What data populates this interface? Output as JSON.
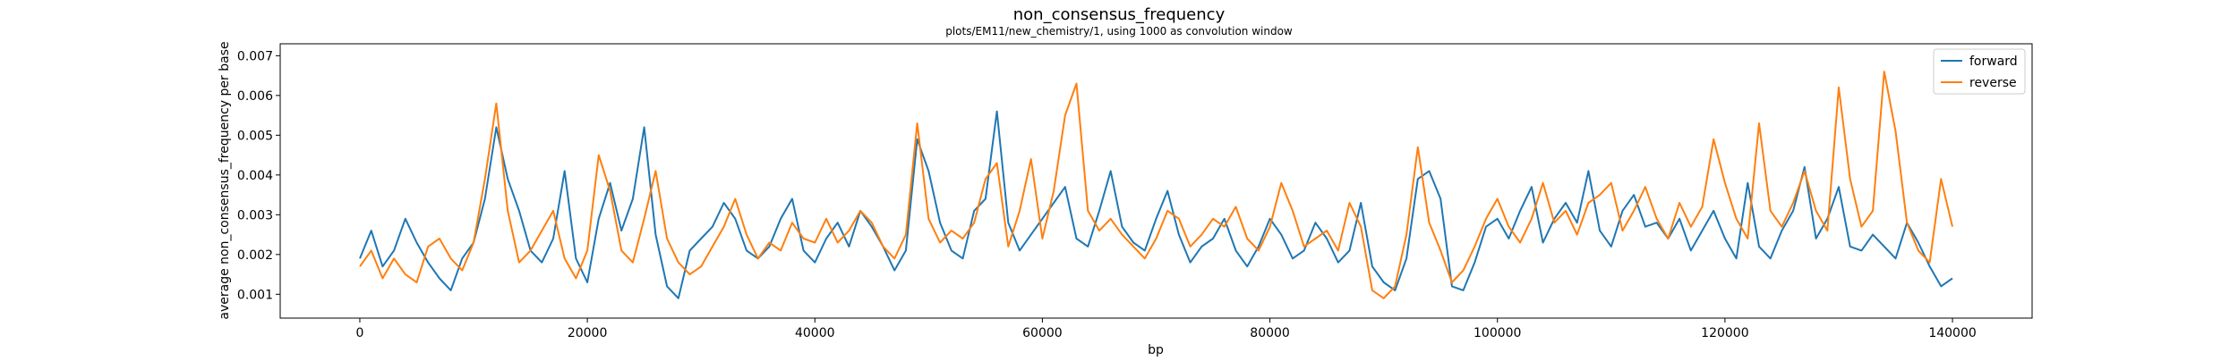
{
  "chart_data": {
    "type": "line",
    "title": "non_consensus_frequency",
    "subtitle": "plots/EM11/new_chemistry/1, using 1000 as convolution window",
    "xlabel": "bp",
    "ylabel": "average non_consensus_frequency per base",
    "xlim": [
      -7000,
      147000
    ],
    "ylim": [
      0.0004,
      0.0073
    ],
    "xticks": [
      0,
      20000,
      40000,
      60000,
      80000,
      100000,
      120000,
      140000
    ],
    "yticks": [
      0.001,
      0.002,
      0.003,
      0.004,
      0.005,
      0.006,
      0.007
    ],
    "xtick_labels": [
      "0",
      "20000",
      "40000",
      "60000",
      "80000",
      "100000",
      "120000",
      "140000"
    ],
    "ytick_labels": [
      "0.001",
      "0.002",
      "0.003",
      "0.004",
      "0.005",
      "0.006",
      "0.007"
    ],
    "legend_position": "top-right",
    "series": [
      {
        "name": "forward",
        "color": "#1f77b4",
        "x": [
          0,
          1000,
          2000,
          3000,
          4000,
          5000,
          6000,
          7000,
          8000,
          9000,
          10000,
          11000,
          12000,
          13000,
          14000,
          15000,
          16000,
          17000,
          18000,
          19000,
          20000,
          21000,
          22000,
          23000,
          24000,
          25000,
          26000,
          27000,
          28000,
          29000,
          30000,
          31000,
          32000,
          33000,
          34000,
          35000,
          36000,
          37000,
          38000,
          39000,
          40000,
          41000,
          42000,
          43000,
          44000,
          45000,
          46000,
          47000,
          48000,
          49000,
          50000,
          51000,
          52000,
          53000,
          54000,
          55000,
          56000,
          57000,
          58000,
          59000,
          60000,
          61000,
          62000,
          63000,
          64000,
          65000,
          66000,
          67000,
          68000,
          69000,
          70000,
          71000,
          72000,
          73000,
          74000,
          75000,
          76000,
          77000,
          78000,
          79000,
          80000,
          81000,
          82000,
          83000,
          84000,
          85000,
          86000,
          87000,
          88000,
          89000,
          90000,
          91000,
          92000,
          93000,
          94000,
          95000,
          96000,
          97000,
          98000,
          99000,
          100000,
          101000,
          102000,
          103000,
          104000,
          105000,
          106000,
          107000,
          108000,
          109000,
          110000,
          111000,
          112000,
          113000,
          114000,
          115000,
          116000,
          117000,
          118000,
          119000,
          120000,
          121000,
          122000,
          123000,
          124000,
          125000,
          126000,
          127000,
          128000,
          129000,
          130000,
          131000,
          132000,
          133000,
          134000,
          135000,
          136000,
          137000,
          138000,
          139000,
          140000
        ],
        "y": [
          0.0019,
          0.0026,
          0.0017,
          0.0021,
          0.0029,
          0.0023,
          0.0018,
          0.0014,
          0.0011,
          0.0019,
          0.0023,
          0.0034,
          0.0052,
          0.0039,
          0.0031,
          0.0021,
          0.0018,
          0.0024,
          0.0041,
          0.0019,
          0.0013,
          0.0029,
          0.0038,
          0.0026,
          0.0034,
          0.0052,
          0.0025,
          0.0012,
          0.0009,
          0.0021,
          0.0024,
          0.0027,
          0.0033,
          0.0029,
          0.0021,
          0.0019,
          0.0022,
          0.0029,
          0.0034,
          0.0021,
          0.0018,
          0.0024,
          0.0028,
          0.0022,
          0.0031,
          0.0027,
          0.0022,
          0.0016,
          0.0021,
          0.0049,
          0.0041,
          0.0028,
          0.0021,
          0.0019,
          0.0031,
          0.0034,
          0.0056,
          0.0028,
          0.0021,
          0.0025,
          0.0029,
          0.0033,
          0.0037,
          0.0024,
          0.0022,
          0.0031,
          0.0041,
          0.0027,
          0.0023,
          0.0021,
          0.0029,
          0.0036,
          0.0025,
          0.0018,
          0.0022,
          0.0024,
          0.0029,
          0.0021,
          0.0017,
          0.0022,
          0.0029,
          0.0025,
          0.0019,
          0.0021,
          0.0028,
          0.0024,
          0.0018,
          0.0021,
          0.0033,
          0.0017,
          0.0013,
          0.0011,
          0.0019,
          0.0039,
          0.0041,
          0.0034,
          0.0012,
          0.0011,
          0.0018,
          0.0027,
          0.0029,
          0.0024,
          0.0031,
          0.0037,
          0.0023,
          0.0029,
          0.0033,
          0.0028,
          0.0041,
          0.0026,
          0.0022,
          0.0031,
          0.0035,
          0.0027,
          0.0028,
          0.0024,
          0.0029,
          0.0021,
          0.0026,
          0.0031,
          0.0024,
          0.0019,
          0.0038,
          0.0022,
          0.0019,
          0.0026,
          0.0031,
          0.0042,
          0.0024,
          0.0029,
          0.0037,
          0.0022,
          0.0021,
          0.0025,
          0.0022,
          0.0019,
          0.0028,
          0.0023,
          0.0017,
          0.0012,
          0.0014
        ]
      },
      {
        "name": "reverse",
        "color": "#ff7f0e",
        "x": [
          0,
          1000,
          2000,
          3000,
          4000,
          5000,
          6000,
          7000,
          8000,
          9000,
          10000,
          11000,
          12000,
          13000,
          14000,
          15000,
          16000,
          17000,
          18000,
          19000,
          20000,
          21000,
          22000,
          23000,
          24000,
          25000,
          26000,
          27000,
          28000,
          29000,
          30000,
          31000,
          32000,
          33000,
          34000,
          35000,
          36000,
          37000,
          38000,
          39000,
          40000,
          41000,
          42000,
          43000,
          44000,
          45000,
          46000,
          47000,
          48000,
          49000,
          50000,
          51000,
          52000,
          53000,
          54000,
          55000,
          56000,
          57000,
          58000,
          59000,
          60000,
          61000,
          62000,
          63000,
          64000,
          65000,
          66000,
          67000,
          68000,
          69000,
          70000,
          71000,
          72000,
          73000,
          74000,
          75000,
          76000,
          77000,
          78000,
          79000,
          80000,
          81000,
          82000,
          83000,
          84000,
          85000,
          86000,
          87000,
          88000,
          89000,
          90000,
          91000,
          92000,
          93000,
          94000,
          95000,
          96000,
          97000,
          98000,
          99000,
          100000,
          101000,
          102000,
          103000,
          104000,
          105000,
          106000,
          107000,
          108000,
          109000,
          110000,
          111000,
          112000,
          113000,
          114000,
          115000,
          116000,
          117000,
          118000,
          119000,
          120000,
          121000,
          122000,
          123000,
          124000,
          125000,
          126000,
          127000,
          128000,
          129000,
          130000,
          131000,
          132000,
          133000,
          134000,
          135000,
          136000,
          137000,
          138000,
          139000,
          140000
        ],
        "y": [
          0.0017,
          0.0021,
          0.0014,
          0.0019,
          0.0015,
          0.0013,
          0.0022,
          0.0024,
          0.0019,
          0.0016,
          0.0023,
          0.0039,
          0.0058,
          0.0031,
          0.0018,
          0.0021,
          0.0026,
          0.0031,
          0.0019,
          0.0014,
          0.0021,
          0.0045,
          0.0036,
          0.0021,
          0.0018,
          0.0029,
          0.0041,
          0.0024,
          0.0018,
          0.0015,
          0.0017,
          0.0022,
          0.0027,
          0.0034,
          0.0025,
          0.0019,
          0.0023,
          0.0021,
          0.0028,
          0.0024,
          0.0023,
          0.0029,
          0.0023,
          0.0026,
          0.0031,
          0.0028,
          0.0022,
          0.0019,
          0.0025,
          0.0053,
          0.0029,
          0.0023,
          0.0026,
          0.0024,
          0.0028,
          0.0039,
          0.0043,
          0.0022,
          0.0031,
          0.0044,
          0.0024,
          0.0036,
          0.0055,
          0.0063,
          0.0031,
          0.0026,
          0.0029,
          0.0025,
          0.0022,
          0.0019,
          0.0024,
          0.0031,
          0.0029,
          0.0022,
          0.0025,
          0.0029,
          0.0027,
          0.0032,
          0.0024,
          0.0021,
          0.0027,
          0.0038,
          0.0031,
          0.0022,
          0.0024,
          0.0026,
          0.0021,
          0.0033,
          0.0027,
          0.0011,
          0.0009,
          0.0012,
          0.0025,
          0.0047,
          0.0028,
          0.0021,
          0.0013,
          0.0016,
          0.0022,
          0.0029,
          0.0034,
          0.0027,
          0.0023,
          0.0029,
          0.0038,
          0.0028,
          0.0031,
          0.0025,
          0.0033,
          0.0035,
          0.0038,
          0.0026,
          0.0031,
          0.0037,
          0.0029,
          0.0024,
          0.0033,
          0.0027,
          0.0032,
          0.0049,
          0.0038,
          0.0029,
          0.0024,
          0.0053,
          0.0031,
          0.0027,
          0.0033,
          0.0041,
          0.0031,
          0.0026,
          0.0062,
          0.0039,
          0.0027,
          0.0031,
          0.0066,
          0.0051,
          0.0028,
          0.0021,
          0.0018,
          0.0039,
          0.0027
        ]
      }
    ]
  }
}
